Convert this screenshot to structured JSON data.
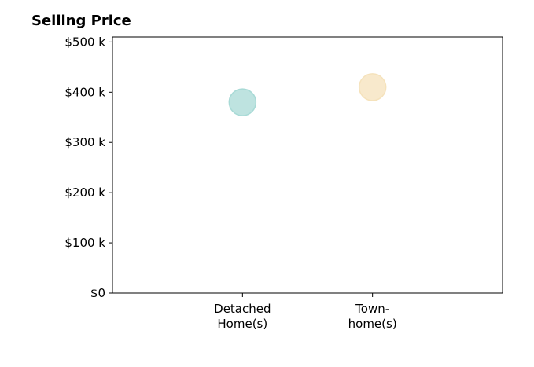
{
  "chart_data": {
    "type": "scatter",
    "title": "Selling Price",
    "xlabel": "",
    "ylabel": "",
    "categories": [
      [
        "Detached",
        "Home(s)"
      ],
      [
        "Town-",
        "home(s)"
      ]
    ],
    "values": [
      380000,
      410000
    ],
    "point_colors": [
      "#a8dad6",
      "#f5e2bb"
    ],
    "y_ticks": [
      0,
      100000,
      200000,
      300000,
      400000,
      500000
    ],
    "y_tick_labels": [
      "$0",
      "$100 k",
      "$200 k",
      "$300 k",
      "$400 k",
      "$500 k"
    ],
    "ylim": [
      0,
      510000
    ],
    "x_range": [
      -1,
      2
    ],
    "grid": false,
    "legend": "none"
  }
}
